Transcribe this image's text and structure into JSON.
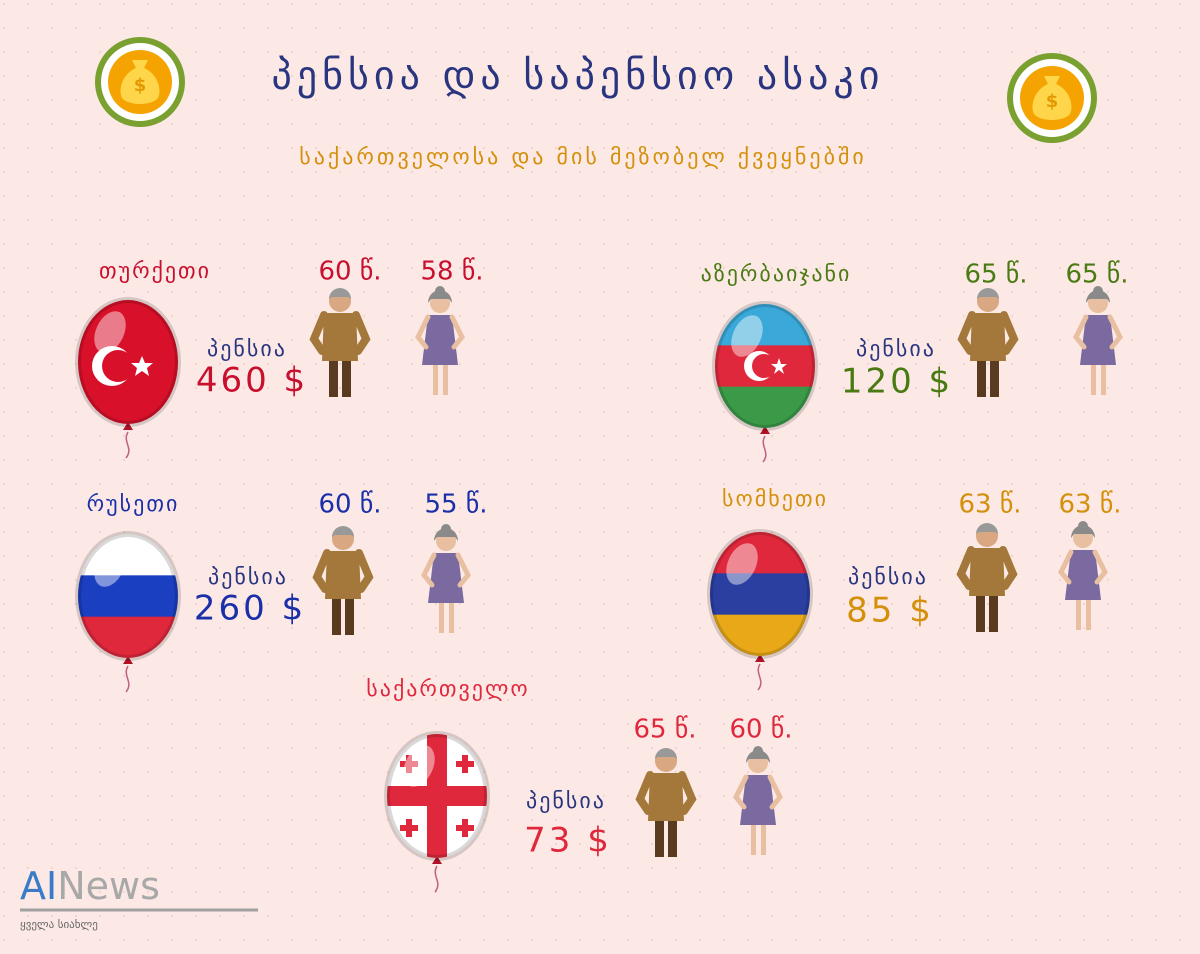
{
  "header": {
    "title": "პენსია და საპენსიო ასაკი",
    "subtitle": "საქართველოსა და მის მეზობელ ქვეყნებში"
  },
  "countries": [
    {
      "name": "თურქეთი",
      "color": "#c8102e",
      "male_age": "60 წ.",
      "female_age": "58 წ.",
      "pension_label": "პენსია",
      "pension": "460 $"
    },
    {
      "name": "აზერბაიჯანი",
      "color": "#4a7a12",
      "male_age": "65 წ.",
      "female_age": "65 წ.",
      "pension_label": "პენსია",
      "pension": "120 $"
    },
    {
      "name": "რუსეთი",
      "color": "#1a2fa8",
      "male_age": "60 წ.",
      "female_age": "55 წ.",
      "pension_label": "პენსია",
      "pension": "260 $"
    },
    {
      "name": "სომხეთი",
      "color": "#d4900a",
      "male_age": "63 წ.",
      "female_age": "63 წ.",
      "pension_label": "პენსია",
      "pension": "85 $"
    },
    {
      "name": "საქართველო",
      "color": "#e0283c",
      "male_age": "65 წ.",
      "female_age": "60 წ.",
      "pension_label": "პენსია",
      "pension": "73 $"
    }
  ],
  "logo": {
    "brand_1": "AI",
    "brand_2": "News",
    "tagline": "ყველა სიახლე"
  }
}
